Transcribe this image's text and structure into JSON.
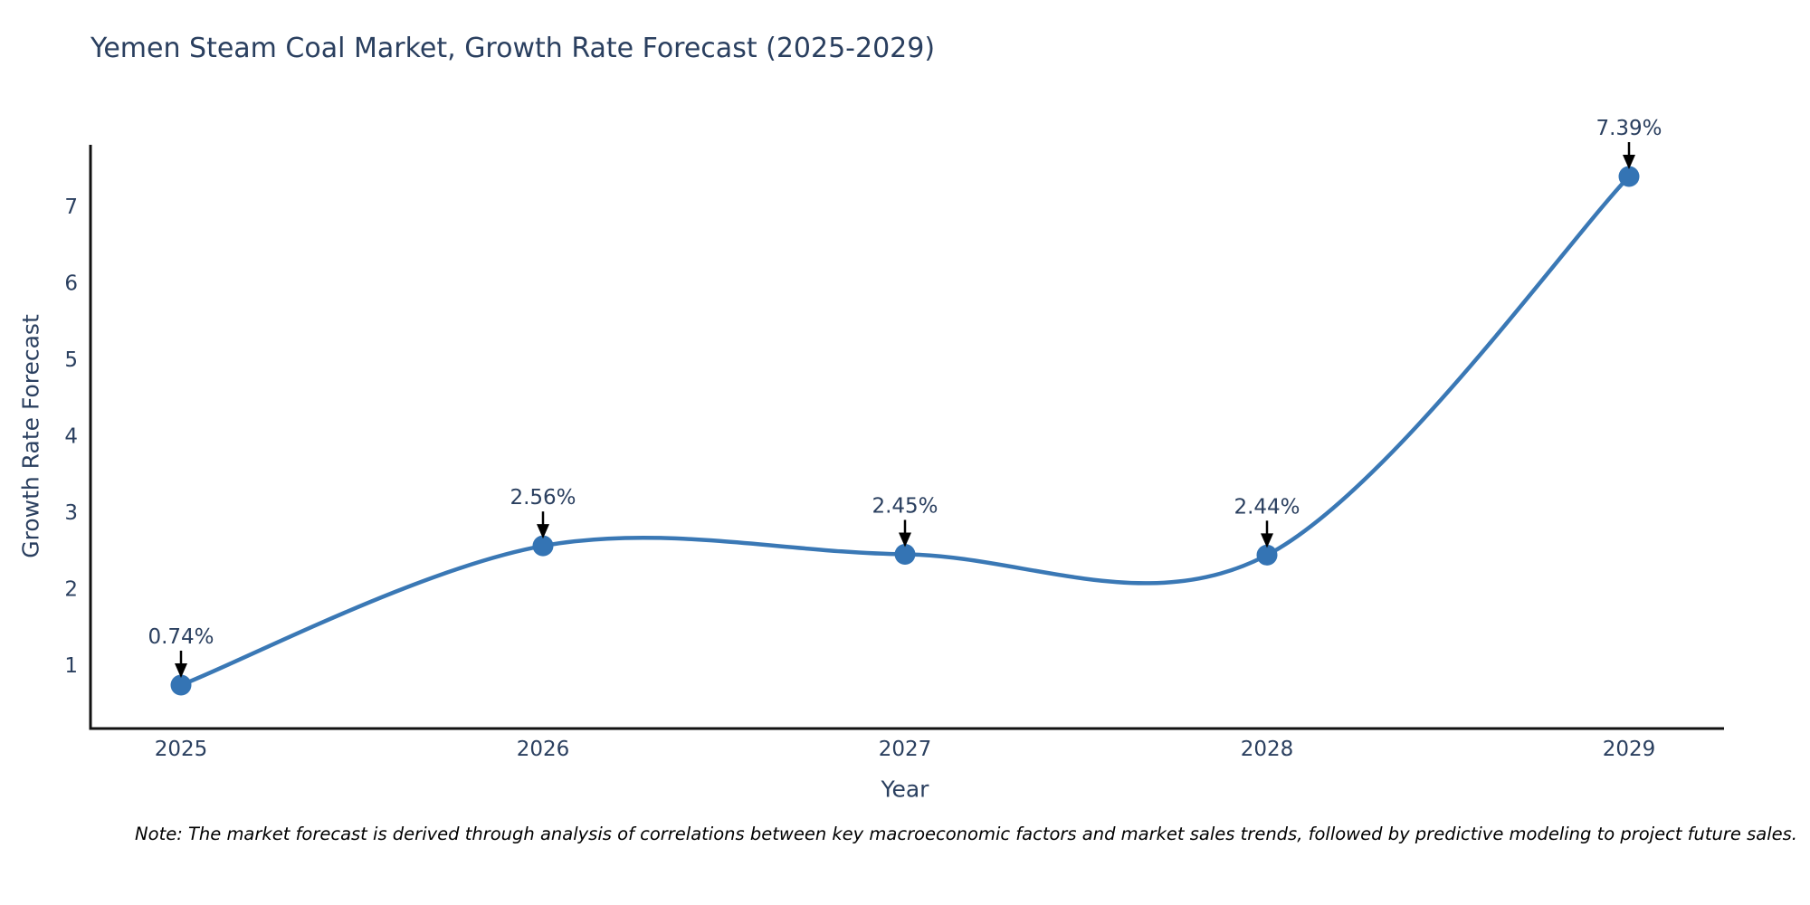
{
  "title": "Yemen Steam Coal Market, Growth Rate Forecast (2025-2029)",
  "footnote": "Note: The market forecast is derived through analysis of correlations between key macroeconomic factors and market sales trends, followed by predictive modeling to project future sales.",
  "chart_data": {
    "type": "line",
    "title": "Yemen Steam Coal Market, Growth Rate Forecast (2025-2029)",
    "xlabel": "Year",
    "ylabel": "Growth Rate Forecast",
    "categories": [
      "2025",
      "2026",
      "2027",
      "2028",
      "2029"
    ],
    "series": [
      {
        "name": "Growth Rate Forecast",
        "values": [
          0.74,
          2.56,
          2.45,
          2.44,
          7.39
        ],
        "data_labels": [
          "0.74%",
          "2.56%",
          "2.45%",
          "2.44%",
          "7.39%"
        ]
      }
    ],
    "yticks": [
      1,
      2,
      3,
      4,
      5,
      6,
      7
    ],
    "ylim": [
      0.17,
      7.8
    ],
    "line_shape": "spline",
    "grid": false,
    "legend": "none",
    "colors": {
      "line": "#3a78b5",
      "marker": "#3474b4",
      "axis": "#111111",
      "text": "#2a3f5f",
      "arrow": "#000000",
      "background": "#ffffff"
    }
  }
}
